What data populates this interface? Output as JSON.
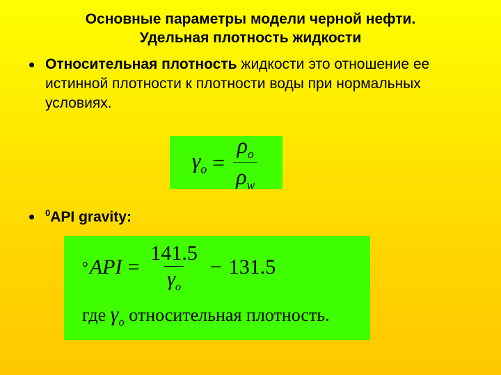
{
  "title_line1": "Основные параметры модели черной нефти.",
  "title_line2": "Удельная плотность жидкости",
  "bullet1_bold": "Относительная плотность",
  "bullet1_rest": " жидкости это отношение ее истинной плотности к плотности воды при нормальных условиях.",
  "bullet2_sup": "0",
  "bullet2_text": "API gravity:",
  "formula1": {
    "lhs_symbol": "γ",
    "lhs_sub": "o",
    "num_symbol": "ρ",
    "num_sub": "o",
    "den_symbol": "ρ",
    "den_sub": "w"
  },
  "formula2": {
    "deg": "°",
    "api": "API",
    "num": "141.5",
    "den_symbol": "γ",
    "den_sub": "o",
    "minus": "−",
    "const": "131.5",
    "where_prefix": "где ",
    "where_symbol": "γ",
    "where_sub": "o",
    "where_rest": " относительная плотность."
  },
  "colors": {
    "box_bg": "#40ff00",
    "text": "#000000"
  }
}
